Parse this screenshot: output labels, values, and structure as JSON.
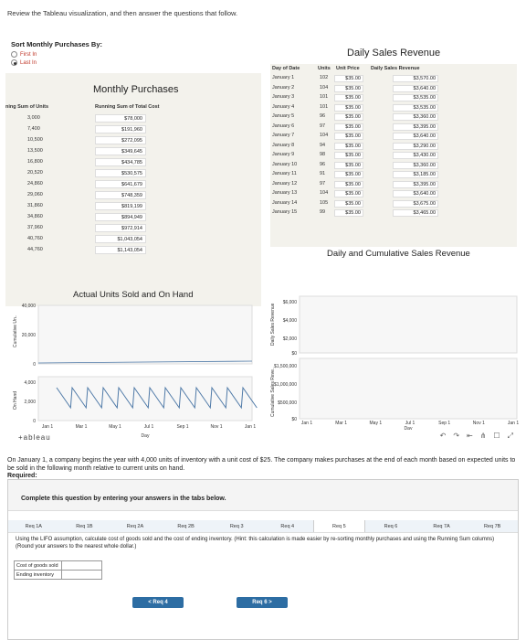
{
  "instruction": "Review the Tableau visualization, and then answer the questions that follow.",
  "sort": {
    "title": "Sort Monthly Purchases By:",
    "options": [
      {
        "label": "First In",
        "checked": false
      },
      {
        "label": "Last In",
        "checked": true
      }
    ]
  },
  "monthly_purchases": {
    "title": "Monthly Purchases",
    "col1_header": "ning Sum of Units",
    "col2_header": "Running Sum of Total Cost",
    "rows": [
      {
        "units": "3,000",
        "cost": "$78,000"
      },
      {
        "units": "7,400",
        "cost": "$191,960"
      },
      {
        "units": "10,500",
        "cost": "$272,095"
      },
      {
        "units": "13,500",
        "cost": "$349,645"
      },
      {
        "units": "16,800",
        "cost": "$434,785"
      },
      {
        "units": "20,520",
        "cost": "$530,575"
      },
      {
        "units": "24,860",
        "cost": "$641,679"
      },
      {
        "units": "29,060",
        "cost": "$748,359"
      },
      {
        "units": "31,860",
        "cost": "$819,199"
      },
      {
        "units": "34,860",
        "cost": "$894,949"
      },
      {
        "units": "37,960",
        "cost": "$972,914"
      },
      {
        "units": "40,760",
        "cost": "$1,043,054"
      },
      {
        "units": "44,760",
        "cost": "$1,143,054"
      }
    ]
  },
  "daily_sales": {
    "title": "Daily Sales Revenue",
    "headers": {
      "day": "Day of Date",
      "units": "Units",
      "price": "Unit Price",
      "revenue": "Daily Sales Revenue"
    },
    "rows": [
      {
        "day": "January 1",
        "units": "102",
        "price": "$35.00",
        "revenue": "$3,570.00"
      },
      {
        "day": "January 2",
        "units": "104",
        "price": "$35.00",
        "revenue": "$3,640.00"
      },
      {
        "day": "January 3",
        "units": "101",
        "price": "$35.00",
        "revenue": "$3,535.00"
      },
      {
        "day": "January 4",
        "units": "101",
        "price": "$35.00",
        "revenue": "$3,535.00"
      },
      {
        "day": "January 5",
        "units": "96",
        "price": "$35.00",
        "revenue": "$3,360.00"
      },
      {
        "day": "January 6",
        "units": "97",
        "price": "$35.00",
        "revenue": "$3,395.00"
      },
      {
        "day": "January 7",
        "units": "104",
        "price": "$35.00",
        "revenue": "$3,640.00"
      },
      {
        "day": "January 8",
        "units": "94",
        "price": "$35.00",
        "revenue": "$3,290.00"
      },
      {
        "day": "January 9",
        "units": "98",
        "price": "$35.00",
        "revenue": "$3,430.00"
      },
      {
        "day": "January 10",
        "units": "96",
        "price": "$35.00",
        "revenue": "$3,360.00"
      },
      {
        "day": "January 11",
        "units": "91",
        "price": "$35.00",
        "revenue": "$3,185.00"
      },
      {
        "day": "January 12",
        "units": "97",
        "price": "$35.00",
        "revenue": "$3,395.00"
      },
      {
        "day": "January 13",
        "units": "104",
        "price": "$35.00",
        "revenue": "$3,640.00"
      },
      {
        "day": "January 14",
        "units": "105",
        "price": "$35.00",
        "revenue": "$3,675.00"
      },
      {
        "day": "January 15",
        "units": "99",
        "price": "$35.00",
        "revenue": "$3,465.00"
      }
    ]
  },
  "chart_data": [
    {
      "type": "line",
      "title": "Actual Units Sold and On Hand",
      "panels": [
        {
          "ylabel": "Cumulative Un..",
          "yticks": [
            "40,000",
            "20,000",
            "0"
          ]
        },
        {
          "ylabel": "On Hand",
          "yticks": [
            "4,000",
            "2,000",
            "0"
          ]
        }
      ],
      "xlabel": "Day",
      "xticks": [
        "Jan 1",
        "Mar 1",
        "May 1",
        "Jul 1",
        "Sep 1",
        "Nov 1",
        "Jan 1"
      ]
    },
    {
      "type": "line",
      "title": "Daily and Cumulative Sales Revenue",
      "panels": [
        {
          "ylabel": "Daily Sales Revenue",
          "yticks": [
            "$6,000",
            "$4,000",
            "$2,000",
            "$0"
          ]
        },
        {
          "ylabel": "Cumulative Sales Reve..",
          "yticks": [
            "$1,500,000",
            "$1,000,000",
            "$500,000",
            "$0"
          ]
        }
      ],
      "xlabel": "Day",
      "xticks": [
        "Jan 1",
        "Mar 1",
        "May 1",
        "Jul 1",
        "Sep 1",
        "Nov 1",
        "Jan 1"
      ]
    }
  ],
  "tableau_logo": "+ableau",
  "question": {
    "text": "On January 1, a company begins the year with 4,000 units of inventory with a unit cost of $25. The company makes purchases at the end of each month based on expected units to be sold in the following month relative to current units on hand.",
    "required": "Required:"
  },
  "panel": {
    "heading": "Complete this question by entering your answers in the tabs below.",
    "tabs": [
      "Req 1A",
      "Req 1B",
      "Req 2A",
      "Req 2B",
      "Req 3",
      "Req 4",
      "Req 5",
      "Req 6",
      "Req 7A",
      "Req 7B"
    ],
    "active_tab": 6,
    "req_text": "Using the LIFO assumption, calculate cost of goods sold and the cost of ending inventory. (Hint: this calculation is made easier by re-sorting monthly purchases and using the Running Sum columns) (Round your answers to the nearest whole dollar.)",
    "answer_rows": [
      "Cost of goods sold",
      "Ending inventory"
    ],
    "prev_label": "< Req 4",
    "next_label": "Req 6 >"
  }
}
